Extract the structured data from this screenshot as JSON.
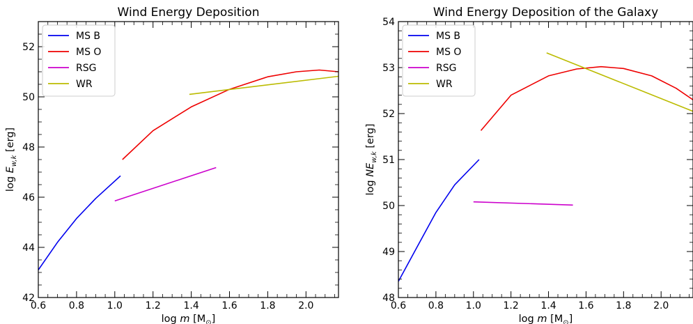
{
  "chart_data": [
    {
      "type": "line",
      "title": "Wind Energy Deposition",
      "xlabel_prefix": "log ",
      "xlabel_var": "m",
      "xlabel_unit": " [M",
      "xlabel_sub": "⊙",
      "xlabel_end": "]",
      "ylabel_prefix": "log ",
      "ylabel_var": "E",
      "ylabel_sub": "w,k",
      "ylabel_unit": " [erg]",
      "xlim": [
        0.6,
        2.17
      ],
      "ylim": [
        42,
        53
      ],
      "xticks": [
        "0.6",
        "0.8",
        "1.0",
        "1.2",
        "1.4",
        "1.6",
        "1.8",
        "2.0"
      ],
      "xtick_values": [
        0.6,
        0.8,
        1.0,
        1.2,
        1.4,
        1.6,
        1.8,
        2.0
      ],
      "yticks": [
        "42",
        "44",
        "46",
        "48",
        "50",
        "52"
      ],
      "ytick_values": [
        42,
        44,
        46,
        48,
        50,
        52
      ],
      "legend_position": "top-left",
      "series": [
        {
          "name": "MS B",
          "color": "#0000ee",
          "x": [
            0.6,
            0.7,
            0.8,
            0.9,
            1.03
          ],
          "y": [
            43.1,
            44.2,
            45.15,
            45.95,
            46.85
          ]
        },
        {
          "name": "MS O",
          "color": "#ee0000",
          "x": [
            1.04,
            1.2,
            1.4,
            1.6,
            1.8,
            1.95,
            2.07,
            2.17
          ],
          "y": [
            47.5,
            48.65,
            49.6,
            50.3,
            50.8,
            51.0,
            51.07,
            51.0
          ]
        },
        {
          "name": "RSG",
          "color": "#cc00cc",
          "x": [
            1.0,
            1.53
          ],
          "y": [
            45.85,
            47.18
          ]
        },
        {
          "name": "WR",
          "color": "#bbbb00",
          "x": [
            1.39,
            2.17
          ],
          "y": [
            50.1,
            50.82
          ]
        }
      ]
    },
    {
      "type": "line",
      "title": "Wind Energy Deposition of the Galaxy",
      "xlabel_prefix": "log ",
      "xlabel_var": "m",
      "xlabel_unit": " [M",
      "xlabel_sub": "⊙",
      "xlabel_end": "]",
      "ylabel_prefix": "log ",
      "ylabel_var": "NE",
      "ylabel_sub": "w,k",
      "ylabel_unit": " [erg]",
      "xlim": [
        0.6,
        2.17
      ],
      "ylim": [
        48,
        54
      ],
      "xticks": [
        "0.6",
        "0.8",
        "1.0",
        "1.2",
        "1.4",
        "1.6",
        "1.8",
        "2.0"
      ],
      "xtick_values": [
        0.6,
        0.8,
        1.0,
        1.2,
        1.4,
        1.6,
        1.8,
        2.0
      ],
      "yticks": [
        "48",
        "49",
        "50",
        "51",
        "52",
        "53",
        "54"
      ],
      "ytick_values": [
        48,
        49,
        50,
        51,
        52,
        53,
        54
      ],
      "legend_position": "top-left",
      "series": [
        {
          "name": "MS B",
          "color": "#0000ee",
          "x": [
            0.6,
            0.7,
            0.8,
            0.9,
            1.03
          ],
          "y": [
            48.35,
            49.1,
            49.85,
            50.45,
            51.0
          ]
        },
        {
          "name": "MS O",
          "color": "#ee0000",
          "x": [
            1.04,
            1.2,
            1.4,
            1.55,
            1.68,
            1.8,
            1.95,
            2.08,
            2.17
          ],
          "y": [
            51.63,
            52.4,
            52.82,
            52.97,
            53.02,
            52.98,
            52.82,
            52.55,
            52.3
          ]
        },
        {
          "name": "RSG",
          "color": "#cc00cc",
          "x": [
            1.0,
            1.53
          ],
          "y": [
            50.08,
            50.01
          ]
        },
        {
          "name": "WR",
          "color": "#bbbb00",
          "x": [
            1.39,
            2.17
          ],
          "y": [
            53.32,
            52.05
          ]
        }
      ]
    }
  ]
}
